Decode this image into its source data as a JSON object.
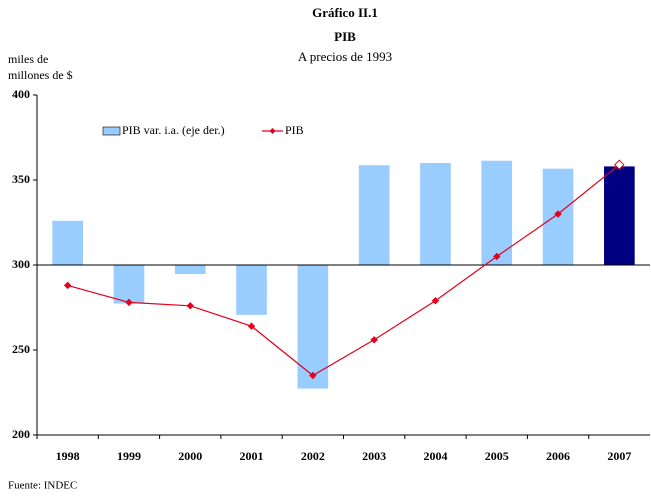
{
  "chart_data": {
    "type": "bar_line",
    "title": "Gráfico II.1",
    "subtitle_main": "PIB",
    "subtitle": "A precios de 1993",
    "y_label": [
      "miles de",
      "millones de $"
    ],
    "source": "Fuente: INDEC",
    "categories": [
      "1998",
      "1999",
      "2000",
      "2001",
      "2002",
      "2003",
      "2004",
      "2005",
      "2006",
      "2007"
    ],
    "ylim": [
      200,
      400
    ],
    "yticks": [
      200,
      250,
      300,
      350,
      400
    ],
    "y2lim": [
      -15,
      15
    ],
    "legend": "top",
    "series": [
      {
        "name": "PIB var. i.a. (eje der.)",
        "type": "bar",
        "axis": "y2",
        "color": "#99ccff",
        "colors": [
          "#99ccff",
          "#99ccff",
          "#99ccff",
          "#99ccff",
          "#99ccff",
          "#99ccff",
          "#99ccff",
          "#99ccff",
          "#99ccff",
          "#000080"
        ],
        "values": [
          3.9,
          -3.4,
          -0.8,
          -4.4,
          -10.9,
          8.8,
          9.0,
          9.2,
          8.5,
          8.7
        ]
      },
      {
        "name": "PIB",
        "type": "line",
        "color": "#e3001b",
        "values": [
          288,
          278,
          276,
          264,
          235,
          256,
          279,
          305,
          330,
          359
        ]
      }
    ]
  }
}
